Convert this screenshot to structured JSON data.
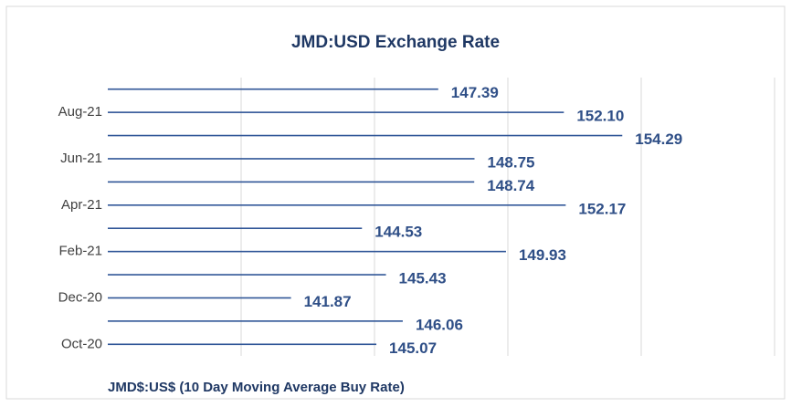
{
  "chart_data": {
    "type": "bar",
    "orientation": "horizontal",
    "title": "JMD:USD Exchange Rate",
    "xlabel": "JMD$:US$ (10 Day Moving Average Buy Rate)",
    "categories": [
      "Oct-20",
      null,
      "Dec-20",
      null,
      "Feb-21",
      null,
      "Apr-21",
      null,
      "Jun-21",
      null,
      "Aug-21",
      null
    ],
    "values": [
      145.07,
      146.06,
      141.87,
      145.43,
      149.93,
      144.53,
      152.17,
      148.74,
      148.75,
      154.29,
      152.1,
      147.39
    ],
    "value_labels": [
      "145.07",
      "146.06",
      "141.87",
      "145.43",
      "149.93",
      "144.53",
      "152.17",
      "148.74",
      "148.75",
      "154.29",
      "152.10",
      "147.39"
    ],
    "color": "#2f5597",
    "xlim": [
      135,
      160
    ],
    "xticks": [
      135,
      140,
      145,
      150,
      155,
      160
    ],
    "grid": true
  }
}
